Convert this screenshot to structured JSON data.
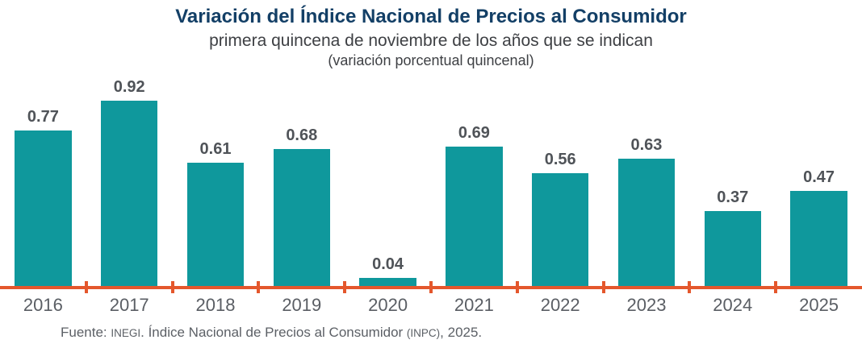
{
  "page": {
    "background": "#FFFFFF"
  },
  "chart_data": {
    "type": "bar",
    "title": "Variación del Índice Nacional de Precios al Consumidor",
    "subtitle": "primera quincena de noviembre de los años que se indican",
    "note": "(variación porcentual quincenal)",
    "categories": [
      "2016",
      "2017",
      "2018",
      "2019",
      "2020",
      "2021",
      "2022",
      "2023",
      "2024",
      "2025"
    ],
    "values": [
      0.77,
      0.92,
      0.61,
      0.68,
      0.04,
      0.69,
      0.56,
      0.63,
      0.37,
      0.47
    ],
    "value_labels": [
      "0.77",
      "0.92",
      "0.61",
      "0.68",
      "0.04",
      "0.69",
      "0.56",
      "0.63",
      "0.37",
      "0.47"
    ],
    "ylim": [
      0,
      1
    ],
    "grid": false,
    "legend_position": "none",
    "xlabel": "",
    "ylabel": "",
    "colors": {
      "bar": "#0F989C",
      "axis": "#E4572C",
      "title": "#133F66",
      "subtitle": "#3E4044",
      "value_label": "#4F5358",
      "tick_label": "#5A5E64",
      "source": "#5C6066",
      "background": "#FFFFFF"
    },
    "source_text": "Fuente: INEGI. Índice Nacional de Precios al Consumidor (INPC), 2025.",
    "source_parts": [
      {
        "text": "Fuente: ",
        "small": false
      },
      {
        "text": "INEGI",
        "small": true
      },
      {
        "text": ". Índice Nacional de Precios al Consumidor ",
        "small": false
      },
      {
        "text": "(INPC)",
        "small": true
      },
      {
        "text": ", 2025.",
        "small": false
      }
    ]
  }
}
